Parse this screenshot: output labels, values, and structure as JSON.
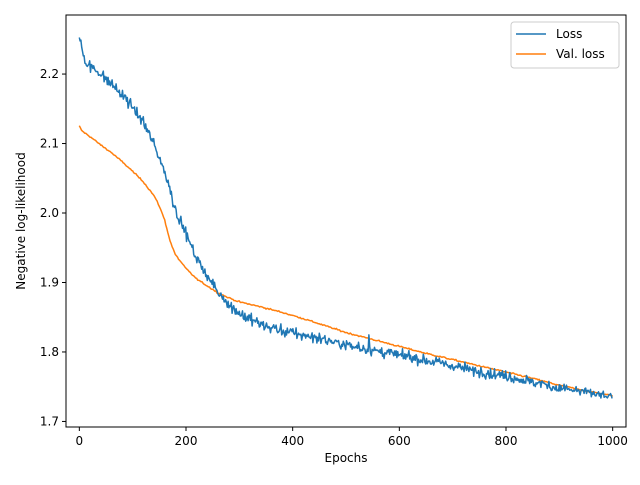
{
  "chart_data": {
    "type": "line",
    "xlabel": "Epochs",
    "ylabel": "Negative log-likelihood",
    "xlim": [
      -25,
      1025
    ],
    "ylim": [
      1.692,
      2.285
    ],
    "xticks": [
      0,
      200,
      400,
      600,
      800,
      1000
    ],
    "yticks": [
      1.7,
      1.8,
      1.9,
      2.0,
      2.1,
      2.2
    ],
    "ytick_labels": [
      "1.7",
      "1.8",
      "1.9",
      "2.0",
      "2.1",
      "2.2"
    ],
    "legend_position": "top-right",
    "series": [
      {
        "name": "Loss",
        "color": "#1f77b4",
        "noisy": true,
        "x": [
          0,
          10,
          20,
          40,
          60,
          80,
          100,
          120,
          140,
          160,
          170,
          180,
          200,
          220,
          240,
          260,
          280,
          300,
          320,
          340,
          360,
          380,
          400,
          450,
          500,
          550,
          600,
          650,
          700,
          750,
          800,
          850,
          900,
          950,
          1000
        ],
        "y": [
          2.255,
          2.22,
          2.212,
          2.2,
          2.185,
          2.17,
          2.152,
          2.13,
          2.1,
          2.06,
          2.035,
          2.005,
          1.97,
          1.935,
          1.91,
          1.885,
          1.87,
          1.855,
          1.848,
          1.84,
          1.835,
          1.83,
          1.827,
          1.82,
          1.81,
          1.802,
          1.795,
          1.788,
          1.78,
          1.772,
          1.765,
          1.757,
          1.748,
          1.742,
          1.735
        ]
      },
      {
        "name": "Val. loss",
        "color": "#ff7f0e",
        "noisy": false,
        "x": [
          0,
          5,
          20,
          40,
          60,
          80,
          100,
          120,
          140,
          150,
          160,
          170,
          180,
          190,
          200,
          220,
          240,
          260,
          280,
          300,
          340,
          380,
          420,
          460,
          500,
          550,
          600,
          650,
          700,
          750,
          800,
          850,
          900,
          950,
          1000
        ],
        "y": [
          2.125,
          2.118,
          2.11,
          2.098,
          2.087,
          2.074,
          2.06,
          2.045,
          2.025,
          2.01,
          1.99,
          1.96,
          1.94,
          1.93,
          1.92,
          1.905,
          1.895,
          1.885,
          1.878,
          1.872,
          1.865,
          1.857,
          1.848,
          1.838,
          1.828,
          1.818,
          1.808,
          1.798,
          1.789,
          1.78,
          1.771,
          1.762,
          1.752,
          1.744,
          1.737
        ]
      }
    ]
  }
}
